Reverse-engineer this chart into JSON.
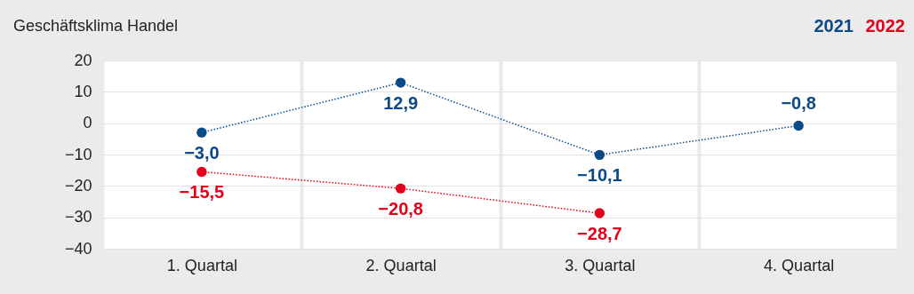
{
  "chart_data": {
    "type": "line",
    "title": "Geschäftsklima Handel",
    "categories": [
      "1. Quartal",
      "2. Quartal",
      "3. Quartal",
      "4. Quartal"
    ],
    "ylim": [
      -40,
      20
    ],
    "yticks": [
      -40,
      -30,
      -20,
      -10,
      0,
      10,
      20
    ],
    "grid": true,
    "legend": "top right",
    "marker": "circle",
    "line_style": "dotted",
    "series": [
      {
        "name": "2021",
        "color": "#0b4a86",
        "values": [
          -3.0,
          12.9,
          -10.1,
          -0.8
        ],
        "value_labels": [
          "−3,0",
          "12,9",
          "−10,1",
          "−0,8"
        ]
      },
      {
        "name": "2022",
        "color": "#e2001a",
        "values": [
          -15.5,
          -20.8,
          -28.7,
          null
        ],
        "value_labels": [
          "−15,5",
          "−20,8",
          "−28,7",
          null
        ]
      }
    ]
  }
}
